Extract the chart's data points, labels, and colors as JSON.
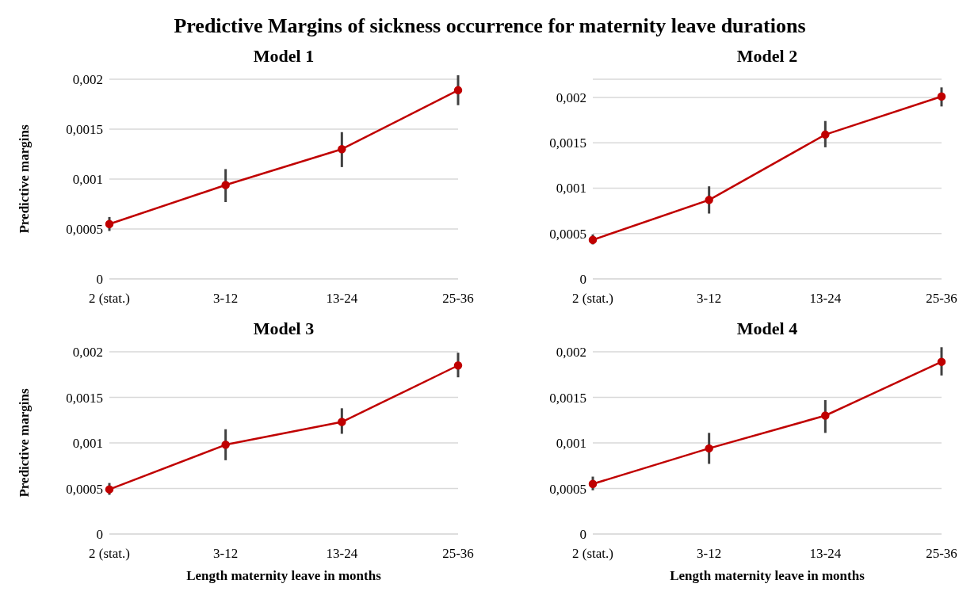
{
  "chart_data": [
    {
      "type": "line",
      "title": "Model 1",
      "annotations": [
        "Predictive Margins of sickness occurrence for maternity leave durations"
      ],
      "ylabel": "Predictive margins",
      "categories": [
        "2 (stat.)",
        "3-12",
        "13-24",
        "25-36"
      ],
      "series": [
        {
          "color": "#c00000",
          "values": [
            0.00055,
            0.00094,
            0.0013,
            0.00189
          ],
          "errors": [
            [
              0.00048,
              0.00062
            ],
            [
              0.00077,
              0.0011
            ],
            [
              0.00112,
              0.00147
            ],
            [
              0.00174,
              0.00204
            ]
          ]
        }
      ],
      "ylim": [
        0,
        0.002
      ],
      "yticks": [
        {
          "value": 0,
          "label": "0"
        },
        {
          "value": 0.0005,
          "label": "0,0005"
        },
        {
          "value": 0.001,
          "label": "0,001"
        },
        {
          "value": 0.0015,
          "label": "0,0015"
        },
        {
          "value": 0.002,
          "label": "0,002"
        }
      ],
      "grid": "y",
      "marker": "circle",
      "line_style": "solid",
      "legend": false
    },
    {
      "type": "line",
      "title": "Model 2",
      "categories": [
        "2 (stat.)",
        "3-12",
        "13-24",
        "25-36"
      ],
      "series": [
        {
          "color": "#c00000",
          "values": [
            0.00043,
            0.00087,
            0.00159,
            0.00201
          ],
          "errors": [
            [
              0.00038,
              0.00049
            ],
            [
              0.00072,
              0.00102
            ],
            [
              0.00145,
              0.00174
            ],
            [
              0.0019,
              0.00211
            ]
          ]
        }
      ],
      "ylim": [
        0,
        0.0022
      ],
      "yticks": [
        {
          "value": 0,
          "label": "0"
        },
        {
          "value": 0.0005,
          "label": "0,0005"
        },
        {
          "value": 0.001,
          "label": "0,001"
        },
        {
          "value": 0.0015,
          "label": "0,0015"
        },
        {
          "value": 0.002,
          "label": "0,002"
        }
      ],
      "grid": "y",
      "marker": "circle",
      "line_style": "solid",
      "legend": false
    },
    {
      "type": "line",
      "title": "Model 3",
      "ylabel": "Predictive margins",
      "xlabel": "Length maternity leave in months",
      "categories": [
        "2 (stat.)",
        "3-12",
        "13-24",
        "25-36"
      ],
      "series": [
        {
          "color": "#c00000",
          "values": [
            0.00049,
            0.00098,
            0.00123,
            0.00185
          ],
          "errors": [
            [
              0.00043,
              0.00056
            ],
            [
              0.00081,
              0.00115
            ],
            [
              0.0011,
              0.00138
            ],
            [
              0.00172,
              0.00199
            ]
          ]
        }
      ],
      "ylim": [
        0,
        0.002
      ],
      "yticks": [
        {
          "value": 0,
          "label": "0"
        },
        {
          "value": 0.0005,
          "label": "0,0005"
        },
        {
          "value": 0.001,
          "label": "0,001"
        },
        {
          "value": 0.0015,
          "label": "0,0015"
        },
        {
          "value": 0.002,
          "label": "0,002"
        }
      ],
      "grid": "y",
      "marker": "circle",
      "line_style": "solid",
      "legend": false
    },
    {
      "type": "line",
      "title": "Model 4",
      "xlabel": "Length maternity leave in months",
      "categories": [
        "2 (stat.)",
        "3-12",
        "13-24",
        "25-36"
      ],
      "series": [
        {
          "color": "#c00000",
          "values": [
            0.00055,
            0.00094,
            0.0013,
            0.00189
          ],
          "errors": [
            [
              0.00048,
              0.00063
            ],
            [
              0.00077,
              0.00111
            ],
            [
              0.00111,
              0.00147
            ],
            [
              0.00174,
              0.00205
            ]
          ]
        }
      ],
      "ylim": [
        0,
        0.002
      ],
      "yticks": [
        {
          "value": 0,
          "label": "0"
        },
        {
          "value": 0.0005,
          "label": "0,0005"
        },
        {
          "value": 0.001,
          "label": "0,001"
        },
        {
          "value": 0.0015,
          "label": "0,0015"
        },
        {
          "value": 0.002,
          "label": "0,002"
        }
      ],
      "grid": "y",
      "marker": "circle",
      "line_style": "solid",
      "legend": false
    }
  ]
}
